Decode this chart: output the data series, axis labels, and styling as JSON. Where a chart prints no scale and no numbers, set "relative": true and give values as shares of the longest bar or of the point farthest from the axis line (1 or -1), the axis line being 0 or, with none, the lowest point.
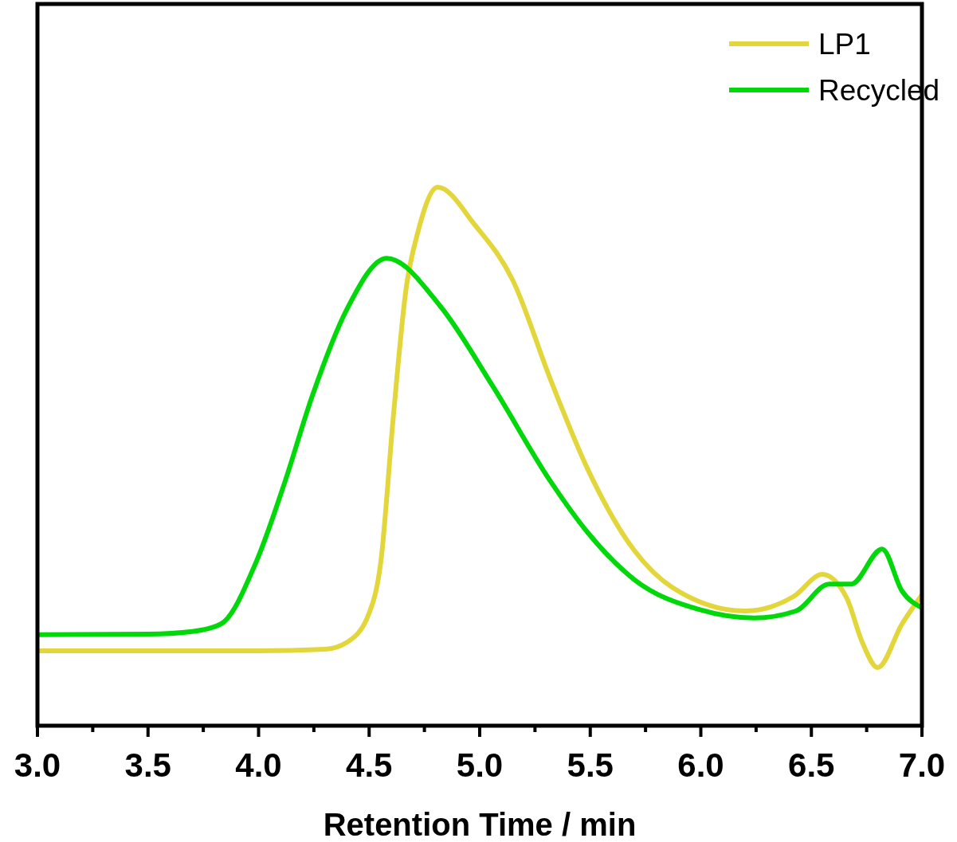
{
  "chart_data": {
    "type": "line",
    "relative": true,
    "xlabel": "Retention Time / min",
    "xlim": [
      3,
      7
    ],
    "xticks": [
      {
        "value": 3,
        "label": "3.0"
      },
      {
        "value": 3.25,
        "label": null
      },
      {
        "value": 3.5,
        "label": "3.5"
      },
      {
        "value": 3.75,
        "label": null
      },
      {
        "value": 4,
        "label": "4.0"
      },
      {
        "value": 4.25,
        "label": null
      },
      {
        "value": 4.5,
        "label": "4.5"
      },
      {
        "value": 4.75,
        "label": null
      },
      {
        "value": 5,
        "label": "5.0"
      },
      {
        "value": 5.25,
        "label": null
      },
      {
        "value": 5.5,
        "label": "5.5"
      },
      {
        "value": 5.75,
        "label": null
      },
      {
        "value": 6,
        "label": "6.0"
      },
      {
        "value": 6.25,
        "label": null
      },
      {
        "value": 6.5,
        "label": "6.5"
      },
      {
        "value": 6.75,
        "label": null
      },
      {
        "value": 7,
        "label": "7.0"
      }
    ],
    "legend": "top right",
    "grid": false,
    "line_style": "solid",
    "series": [
      {
        "name": "LP1",
        "color": "#e3d63a",
        "x": [
          3.0,
          3.5,
          4.0,
          4.3,
          4.4,
          4.5,
          4.553,
          4.61,
          4.668,
          4.72,
          4.81,
          4.98,
          5.15,
          5.32,
          5.49,
          5.7,
          5.87,
          6.2,
          6.42,
          6.55,
          6.66,
          6.73,
          6.8,
          6.91,
          7.0
        ],
        "values": [
          0.139,
          0.139,
          0.139,
          0.142,
          0.155,
          0.209,
          0.305,
          0.577,
          0.814,
          0.916,
          1.0,
          0.929,
          0.827,
          0.643,
          0.475,
          0.325,
          0.257,
          0.213,
          0.24,
          0.281,
          0.237,
          0.155,
          0.108,
          0.189,
          0.243
        ]
      },
      {
        "name": "Recycled",
        "color": "#00d80a",
        "x": [
          3.0,
          3.5,
          3.7,
          3.83,
          3.99,
          4.12,
          4.24,
          4.4,
          4.58,
          4.82,
          5.06,
          5.32,
          5.49,
          5.7,
          5.99,
          6.24,
          6.43,
          6.58,
          6.68,
          6.82,
          6.91,
          7.0
        ],
        "values": [
          0.169,
          0.17,
          0.175,
          0.189,
          0.305,
          0.454,
          0.609,
          0.774,
          0.868,
          0.78,
          0.63,
          0.454,
          0.358,
          0.271,
          0.216,
          0.2,
          0.213,
          0.263,
          0.263,
          0.328,
          0.25,
          0.219
        ]
      }
    ]
  }
}
